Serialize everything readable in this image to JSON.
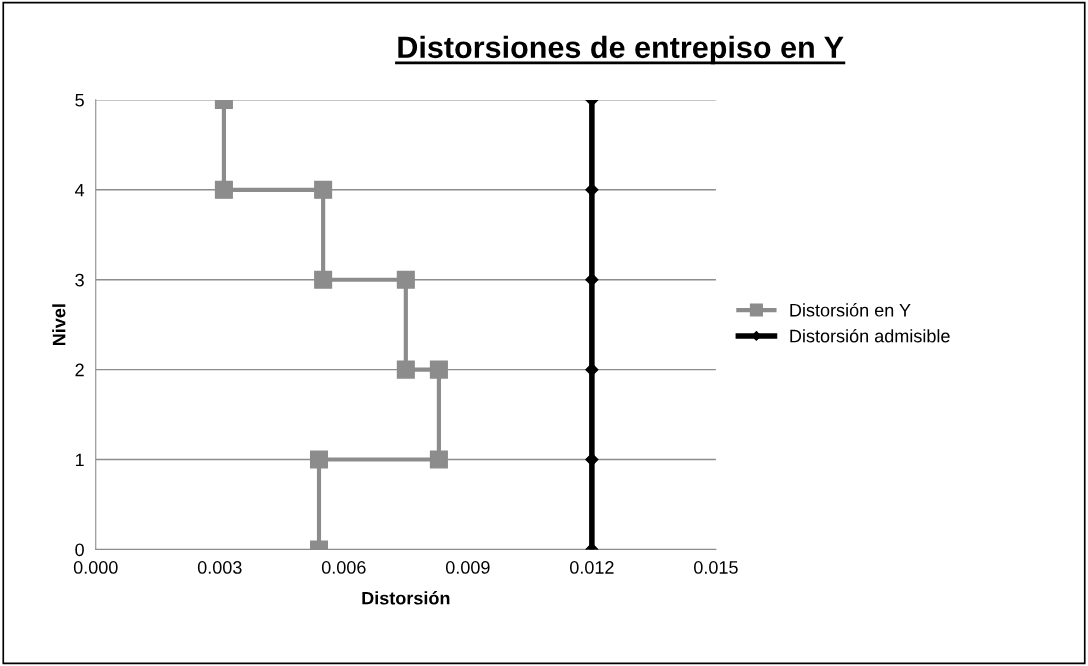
{
  "chart_data": {
    "type": "line",
    "title": "Distorsiones de entrepiso en Y",
    "xlabel": "Distorsión",
    "ylabel": "Nivel",
    "xlim": [
      0,
      0.015
    ],
    "xticks": [
      {
        "value": 0,
        "label": "0.000"
      },
      {
        "value": 0.003,
        "label": "0.003"
      },
      {
        "value": 0.006,
        "label": "0.006"
      },
      {
        "value": 0.009,
        "label": "0.009"
      },
      {
        "value": 0.012,
        "label": "0.012"
      },
      {
        "value": 0.015,
        "label": "0.015"
      }
    ],
    "ylim": [
      0,
      5
    ],
    "yticks": [
      0,
      1,
      2,
      3,
      4,
      5
    ],
    "grid": "y",
    "legend": "right",
    "series": [
      {
        "name": "Distorsión en Y",
        "color": "#8c8c8c",
        "marker": "square",
        "x": [
          0.0054,
          0.0054,
          0.0083,
          0.0083,
          0.0075,
          0.0075,
          0.0055,
          0.0055,
          0.0031,
          0.0031
        ],
        "values": [
          0,
          1,
          1,
          2,
          2,
          3,
          3,
          4,
          4,
          5
        ]
      },
      {
        "name": "Distorsión admisible",
        "color": "#000000",
        "marker": "diamond",
        "x": [
          0.012,
          0.012,
          0.012,
          0.012,
          0.012,
          0.012
        ],
        "values": [
          0,
          1,
          2,
          3,
          4,
          5
        ]
      }
    ]
  }
}
